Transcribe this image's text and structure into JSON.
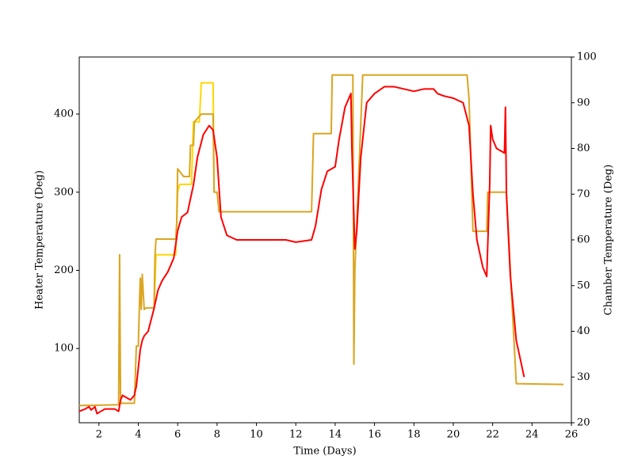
{
  "chart_data": {
    "type": "line",
    "x_label": "Time (Days)",
    "y_label": "Heater Temperature (Deg)",
    "y2_label": "Chamber Temperature (Deg)",
    "xlim": [
      1,
      26
    ],
    "xticks": [
      2,
      4,
      6,
      8,
      10,
      12,
      14,
      16,
      18,
      20,
      22,
      24,
      26
    ],
    "ylim": [
      5,
      473
    ],
    "yticks": [
      100,
      200,
      300,
      400
    ],
    "y2lim": [
      20,
      100
    ],
    "y2ticks": [
      20,
      30,
      40,
      50,
      60,
      70,
      80,
      90,
      100
    ],
    "y_label_color": "#daa520",
    "y2_label_color": "#ff0000",
    "series": [
      {
        "color": "#ffd700",
        "axis": "y",
        "x": [
          4.8,
          4.9,
          5.9,
          6.0,
          6.1,
          6.7,
          6.8,
          7.1,
          7.2,
          7.8,
          7.85
        ],
        "values": [
          150,
          220,
          220,
          300,
          310,
          310,
          390,
          390,
          440,
          440,
          300
        ]
      },
      {
        "color": "#daa520",
        "axis": "y",
        "x": [
          1,
          3.0,
          3.05,
          3.1,
          3.15,
          3.8,
          3.9,
          4.0,
          4.05,
          4.1,
          4.15,
          4.2,
          4.3,
          4.4,
          4.8,
          4.85,
          4.9,
          5.9,
          5.95,
          6.0,
          6.3,
          6.6,
          6.65,
          6.8,
          6.85,
          7.2,
          7.8,
          7.85,
          8.0,
          8.1,
          12.8,
          12.9,
          13.8,
          13.85,
          14.8,
          14.9,
          14.95,
          15.0,
          15.4,
          15.5,
          20.7,
          20.8,
          21.0,
          21.05,
          21.7,
          21.75,
          22.7,
          23.0,
          23.2,
          25.6
        ],
        "values": [
          27,
          28,
          220,
          30,
          30,
          30,
          103,
          103,
          150,
          190,
          150,
          195,
          150,
          152,
          152,
          220,
          240,
          240,
          260,
          330,
          320,
          320,
          360,
          360,
          390,
          400,
          400,
          300,
          300,
          275,
          275,
          375,
          375,
          450,
          450,
          450,
          80,
          200,
          450,
          450,
          450,
          420,
          250,
          250,
          250,
          300,
          300,
          150,
          55,
          54
        ]
      },
      {
        "color": "#ff0000",
        "axis": "y2",
        "x": [
          1,
          1.3,
          1.5,
          1.6,
          1.8,
          1.9,
          2.1,
          2.3,
          2.8,
          3.0,
          3.1,
          3.2,
          3.4,
          3.6,
          3.8,
          3.9,
          4.0,
          4.1,
          4.2,
          4.3,
          4.5,
          4.8,
          5.0,
          5.2,
          5.5,
          5.8,
          6.0,
          6.2,
          6.5,
          6.8,
          7.0,
          7.3,
          7.6,
          7.8,
          8.0,
          8.2,
          8.5,
          9,
          10,
          11,
          11.5,
          12,
          12.8,
          13.0,
          13.3,
          13.6,
          14,
          14.2,
          14.5,
          14.8,
          14.85,
          15.0,
          15.1,
          15.3,
          15.6,
          16,
          16.5,
          17,
          17.5,
          18,
          18.5,
          19,
          19.2,
          19.5,
          20,
          20.5,
          20.8,
          21.0,
          21.2,
          21.5,
          21.7,
          21.85,
          21.9,
          22.0,
          22.2,
          22.6,
          22.65,
          22.7,
          22.9,
          23.2,
          23.5,
          23.6
        ],
        "values": [
          22.5,
          23,
          23.5,
          22.8,
          23.5,
          22,
          22.5,
          23,
          23,
          22.5,
          25,
          26,
          25.5,
          25,
          26,
          28,
          32,
          36,
          38,
          39,
          40,
          45,
          49,
          51,
          53,
          56,
          62,
          65,
          66,
          72,
          78,
          83,
          85,
          84,
          78,
          65,
          61,
          60,
          60,
          60,
          60,
          59.5,
          60,
          63,
          71,
          75,
          76,
          82,
          89,
          92,
          80,
          58,
          62,
          78,
          90,
          92,
          93.5,
          93.5,
          93,
          92.5,
          93,
          93,
          92,
          91.5,
          91,
          90,
          85,
          70,
          60,
          54,
          52,
          72,
          85,
          82,
          80,
          79,
          89,
          70,
          52,
          38,
          32,
          30
        ]
      }
    ]
  }
}
